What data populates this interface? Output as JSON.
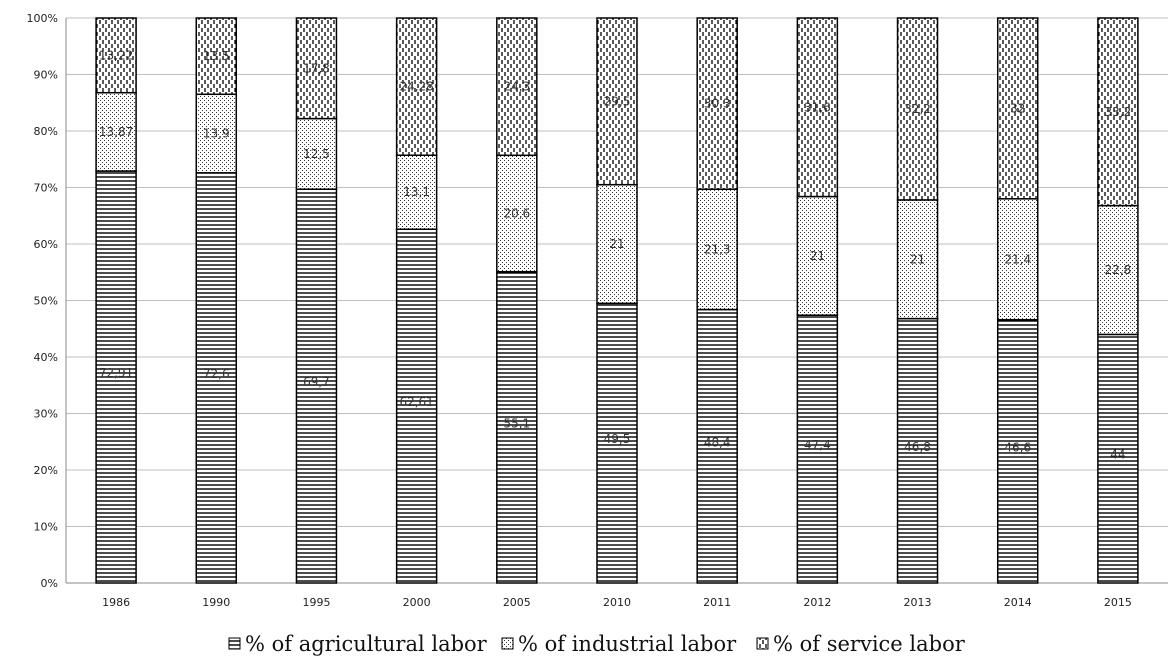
{
  "chart_data": {
    "type": "bar",
    "stacked": true,
    "percent_stacked": true,
    "title": "",
    "xlabel": "",
    "ylabel": "",
    "categories": [
      "1986",
      "1990",
      "1995",
      "2000",
      "2005",
      "2010",
      "2011",
      "2012",
      "2013",
      "2014",
      "2015"
    ],
    "series": [
      {
        "name": "% of agricultural labor",
        "pattern": "horizontal-lines",
        "values": [
          72.91,
          72.6,
          69.7,
          62.61,
          55.1,
          49.5,
          48.4,
          47.4,
          46.8,
          46.6,
          44
        ],
        "labels": [
          "72,91",
          "72,6",
          "69,7",
          "62,61",
          "55,1",
          "49,5",
          "48,4",
          "47,4",
          "46,8",
          "46,6",
          "44"
        ]
      },
      {
        "name": "% of industrial labor",
        "pattern": "dots",
        "values": [
          13.87,
          13.9,
          12.5,
          13.1,
          20.6,
          21,
          21.3,
          21,
          21,
          21.4,
          22.8
        ],
        "labels": [
          "13,87",
          "13,9",
          "12,5",
          "13,1",
          "20,6",
          "21",
          "21,3",
          "21",
          "21",
          "21,4",
          "22,8"
        ]
      },
      {
        "name": "% of service labor",
        "pattern": "dashed-vertical",
        "values": [
          13.22,
          13.5,
          17.8,
          24.28,
          24.3,
          29.5,
          30.3,
          31.6,
          32.2,
          32,
          33.2
        ],
        "labels": [
          "13,22",
          "13,5",
          "17,8",
          "24,28",
          "24,3",
          "29,5",
          "30,3",
          "31,6",
          "32,2",
          "32",
          "33,2"
        ]
      }
    ],
    "ylim": [
      0,
      100
    ],
    "yticks": [
      "0%",
      "10%",
      "20%",
      "30%",
      "40%",
      "50%",
      "60%",
      "70%",
      "80%",
      "90%",
      "100%"
    ],
    "grid": true,
    "legend_position": "bottom",
    "colors": {
      "stroke": "#000000",
      "grid": "#bfbfbf",
      "axis": "#888888"
    }
  }
}
